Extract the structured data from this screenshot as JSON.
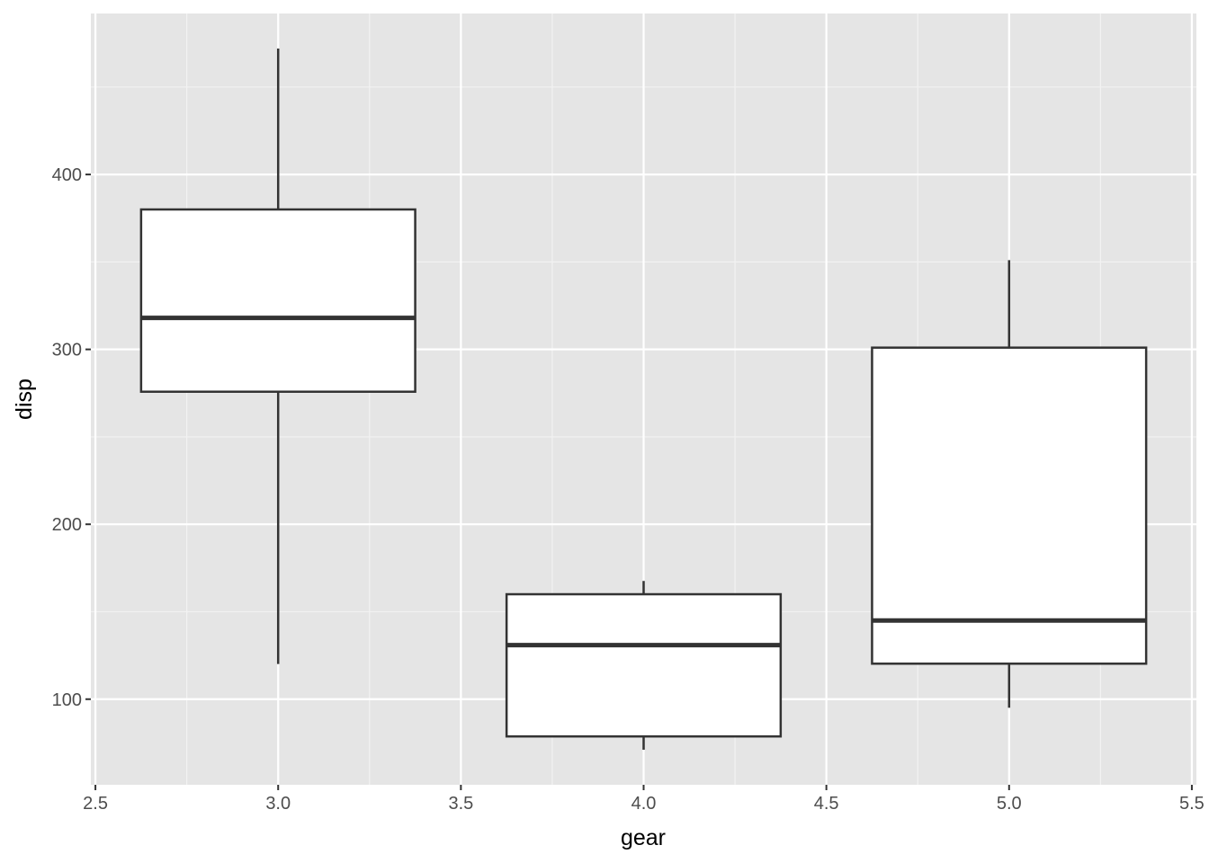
{
  "chart_data": {
    "type": "box",
    "x_label": "gear",
    "y_label": "disp",
    "x": [
      3,
      4,
      5
    ],
    "min": [
      120.1,
      71.1,
      95.1
    ],
    "q1": [
      275.8,
      78.7,
      120.3
    ],
    "median": [
      318,
      130.9,
      145
    ],
    "q3": [
      380,
      160,
      301
    ],
    "max": [
      472,
      167.6,
      351
    ],
    "xlim": [
      2.4875,
      5.5125
    ],
    "ylim": [
      51.05,
      492.05
    ],
    "xticks": [
      {
        "value": 2.5,
        "label": "2.5"
      },
      {
        "value": 3,
        "label": "3.0"
      },
      {
        "value": 3.5,
        "label": "3.5"
      },
      {
        "value": 4,
        "label": "4.0"
      },
      {
        "value": 4.5,
        "label": "4.5"
      },
      {
        "value": 5,
        "label": "5.0"
      },
      {
        "value": 5.5,
        "label": "5.5"
      }
    ],
    "yticks": [
      100,
      200,
      300,
      400
    ],
    "x_minor_ticks": [
      2.75,
      3.25,
      3.75,
      4.25,
      4.75,
      5.25
    ],
    "y_minor_ticks": [
      150,
      250,
      350,
      450
    ],
    "grid": true,
    "panel_color": "#e5e5e5",
    "box_fill": "#ffffff",
    "box_stroke": "#333333"
  }
}
